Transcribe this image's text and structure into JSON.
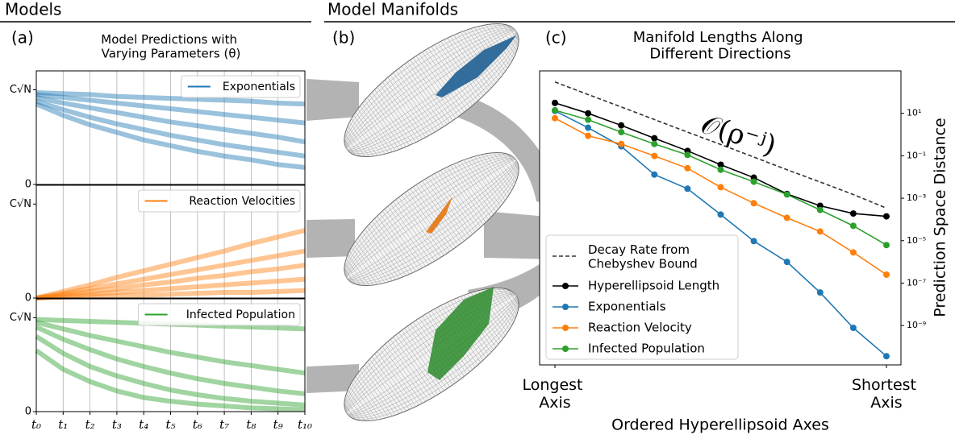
{
  "headers": [
    "Models",
    "Model Manifolds"
  ],
  "panel_labels": [
    "(a)",
    "(b)",
    "(c)"
  ],
  "chart_data": [
    {
      "type": "line",
      "title": "Model Predictions with Varying Parameters (θ)",
      "legend": "Exponentials",
      "color": "#1f77b4",
      "ylim": [
        0,
        1.2
      ],
      "yticks": [
        0,
        {
          "value": 1,
          "label": "C√N"
        }
      ],
      "grid": true,
      "curves": [
        [
          0.97,
          0.96,
          0.95,
          0.93,
          0.92,
          0.91,
          0.9,
          0.89,
          0.88,
          0.86,
          0.85
        ],
        [
          0.95,
          0.92,
          0.89,
          0.86,
          0.83,
          0.8,
          0.77,
          0.74,
          0.71,
          0.68,
          0.65
        ],
        [
          0.92,
          0.86,
          0.81,
          0.76,
          0.71,
          0.66,
          0.62,
          0.58,
          0.54,
          0.5,
          0.45
        ],
        [
          0.88,
          0.79,
          0.71,
          0.64,
          0.58,
          0.52,
          0.47,
          0.42,
          0.38,
          0.34,
          0.3
        ],
        [
          0.85,
          0.73,
          0.63,
          0.55,
          0.47,
          0.41,
          0.35,
          0.3,
          0.26,
          0.21,
          0.18
        ]
      ]
    },
    {
      "type": "line",
      "legend": "Reaction Velocities",
      "color": "#ff7f0e",
      "ylim": [
        0,
        1.2
      ],
      "yticks": [
        0,
        {
          "value": 1,
          "label": "C√N"
        }
      ],
      "grid": true,
      "curves": [
        [
          0,
          0.07,
          0.14,
          0.22,
          0.29,
          0.36,
          0.43,
          0.5,
          0.58,
          0.65,
          0.72
        ],
        [
          0,
          0.05,
          0.1,
          0.15,
          0.2,
          0.25,
          0.3,
          0.35,
          0.4,
          0.45,
          0.5
        ],
        [
          0,
          0.035,
          0.07,
          0.1,
          0.14,
          0.17,
          0.21,
          0.24,
          0.28,
          0.31,
          0.35
        ],
        [
          0,
          0.02,
          0.04,
          0.06,
          0.08,
          0.1,
          0.12,
          0.14,
          0.16,
          0.18,
          0.2
        ],
        [
          0,
          0.01,
          0.02,
          0.02,
          0.03,
          0.04,
          0.05,
          0.06,
          0.06,
          0.07,
          0.08
        ]
      ]
    },
    {
      "type": "line",
      "legend": "Infected Population",
      "color": "#2ca02c",
      "ylim": [
        0,
        1.2
      ],
      "yticks": [
        0,
        {
          "value": 1,
          "label": "C√N"
        }
      ],
      "grid": true,
      "categories": [
        "t₀",
        "t₁",
        "t₂",
        "t₃",
        "t₄",
        "t₅",
        "t₆",
        "t₇",
        "t₈",
        "t₉",
        "t₁₀"
      ],
      "curves": [
        [
          0.98,
          0.97,
          0.96,
          0.95,
          0.94,
          0.93,
          0.92,
          0.91,
          0.9,
          0.89,
          0.88
        ],
        [
          0.95,
          0.88,
          0.81,
          0.75,
          0.69,
          0.63,
          0.58,
          0.53,
          0.49,
          0.45,
          0.41
        ],
        [
          0.9,
          0.77,
          0.66,
          0.56,
          0.48,
          0.41,
          0.35,
          0.3,
          0.26,
          0.22,
          0.19
        ],
        [
          0.8,
          0.62,
          0.48,
          0.38,
          0.3,
          0.23,
          0.18,
          0.14,
          0.11,
          0.09,
          0.07
        ],
        [
          0.65,
          0.45,
          0.32,
          0.22,
          0.15,
          0.11,
          0.08,
          0.06,
          0.04,
          0.03,
          0.02
        ]
      ]
    },
    {
      "type": "line",
      "title": "Manifold Lengths Along Different Directions",
      "x_label": "Ordered Hyperellipsoid Axes",
      "y_label": "Prediction Space Distance",
      "annotation": "𝒪(ρ⁻ʲ)",
      "yscale": "log",
      "legend_loc": "lower left",
      "categories": [
        "Longest Axis",
        null,
        null,
        null,
        null,
        null,
        null,
        null,
        null,
        null,
        "Shortest Axis"
      ],
      "ylim": [
        1.4e-11,
        1000
      ],
      "yticks": [
        {
          "value": 10,
          "label": "10¹"
        },
        {
          "value": 0.1,
          "label": "10⁻¹"
        },
        {
          "value": 0.001,
          "label": "10⁻³"
        },
        {
          "value": 1e-05,
          "label": "10⁻⁵"
        },
        {
          "value": 1e-07,
          "label": "10⁻⁷"
        },
        {
          "value": 1e-09,
          "label": "10⁻⁹"
        }
      ],
      "series": [
        {
          "name": "Decay Rate from Chebyshev Bound",
          "color": "#333333",
          "dashed": true,
          "values": [
            300,
            77,
            20,
            5.1,
            1.3,
            0.34,
            0.087,
            0.022,
            0.0058,
            0.0015,
            0.00034
          ]
        },
        {
          "name": "Hyperellipsoid Length",
          "color": "#000000",
          "values": [
            31,
            10,
            2.7,
            0.67,
            0.17,
            0.038,
            0.0093,
            0.0016,
            0.00044,
            0.00019,
            0.00014
          ]
        },
        {
          "name": "Exponentials",
          "color": "#1f77b4",
          "values": [
            13,
            2.1,
            0.28,
            0.013,
            0.0028,
            0.00017,
            9.5e-06,
            1e-06,
            3.6e-08,
            7.8e-10,
            3.6e-11
          ]
        },
        {
          "name": "Reaction Velocity",
          "color": "#ff7f0e",
          "values": [
            5.9,
            0.87,
            0.36,
            0.098,
            0.026,
            0.0033,
            0.00058,
            0.00012,
            2.7e-05,
            2.8e-06,
            2.5e-07
          ]
        },
        {
          "name": "Infected Population",
          "color": "#2ca02c",
          "values": [
            14,
            5,
            1.3,
            0.36,
            0.11,
            0.022,
            0.006,
            0.0015,
            0.00028,
            5e-05,
            6.2e-06
          ]
        }
      ]
    }
  ]
}
